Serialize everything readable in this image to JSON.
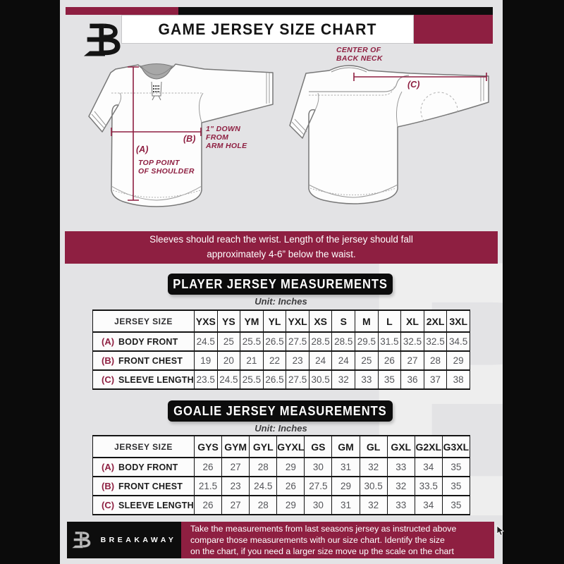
{
  "colors": {
    "maroon": "#8E1F41",
    "black": "#0B0B0B",
    "background_gray": "#E3E3E5"
  },
  "header": {
    "title": "GAME JERSEY SIZE CHART",
    "logo": "breakaway-b-logo"
  },
  "diagram": {
    "front": {
      "a_key": "(A)",
      "a_caption": [
        "TOP POINT",
        "OF SHOULDER"
      ],
      "b_key": "(B)",
      "b_caption": [
        "1\" DOWN",
        "FROM",
        "ARM HOLE"
      ]
    },
    "back": {
      "c_key": "(C)",
      "c_caption": [
        "CENTER OF",
        "BACK NECK"
      ]
    }
  },
  "banner": {
    "lines": [
      "Sleeves should reach the wrist. Length of the jersey should fall",
      "approximately 4-6” below the waist."
    ]
  },
  "sections": {
    "player": {
      "title": "PLAYER JERSEY MEASUREMENTS",
      "unit": "Unit: Inches",
      "columns": [
        "JERSEY SIZE",
        "YXS",
        "YS",
        "YM",
        "YL",
        "YXL",
        "XS",
        "S",
        "M",
        "L",
        "XL",
        "2XL",
        "3XL"
      ],
      "rows": [
        {
          "key": "(A)",
          "label": "BODY FRONT",
          "values": [
            "24.5",
            "25",
            "25.5",
            "26.5",
            "27.5",
            "28.5",
            "28.5",
            "29.5",
            "31.5",
            "32.5",
            "32.5",
            "34.5"
          ]
        },
        {
          "key": "(B)",
          "label": "FRONT CHEST",
          "values": [
            "19",
            "20",
            "21",
            "22",
            "23",
            "24",
            "24",
            "25",
            "26",
            "27",
            "28",
            "29"
          ]
        },
        {
          "key": "(C)",
          "label": "SLEEVE LENGTH",
          "values": [
            "23.5",
            "24.5",
            "25.5",
            "26.5",
            "27.5",
            "30.5",
            "32",
            "33",
            "35",
            "36",
            "37",
            "38"
          ]
        }
      ]
    },
    "goalie": {
      "title": "GOALIE JERSEY MEASUREMENTS",
      "unit": "Unit: Inches",
      "columns": [
        "JERSEY SIZE",
        "GYS",
        "GYM",
        "GYL",
        "GYXL",
        "GS",
        "GM",
        "GL",
        "GXL",
        "G2XL",
        "G3XL"
      ],
      "rows": [
        {
          "key": "(A)",
          "label": "BODY FRONT",
          "values": [
            "26",
            "27",
            "28",
            "29",
            "30",
            "31",
            "32",
            "33",
            "34",
            "35"
          ]
        },
        {
          "key": "(B)",
          "label": "FRONT CHEST",
          "values": [
            "21.5",
            "23",
            "24.5",
            "26",
            "27.5",
            "29",
            "30.5",
            "32",
            "33.5",
            "35"
          ]
        },
        {
          "key": "(C)",
          "label": "SLEEVE LENGTH",
          "values": [
            "26",
            "27",
            "28",
            "29",
            "30",
            "31",
            "32",
            "33",
            "34",
            "35"
          ]
        }
      ]
    }
  },
  "footer": {
    "brand": "BREAKAWAY",
    "note_lines": [
      "Take the measurements from last seasons jersey as instructed above",
      "compare those measurements with our size chart. Identify the size",
      "on the chart, if you need a larger size move up the scale on the chart"
    ]
  }
}
